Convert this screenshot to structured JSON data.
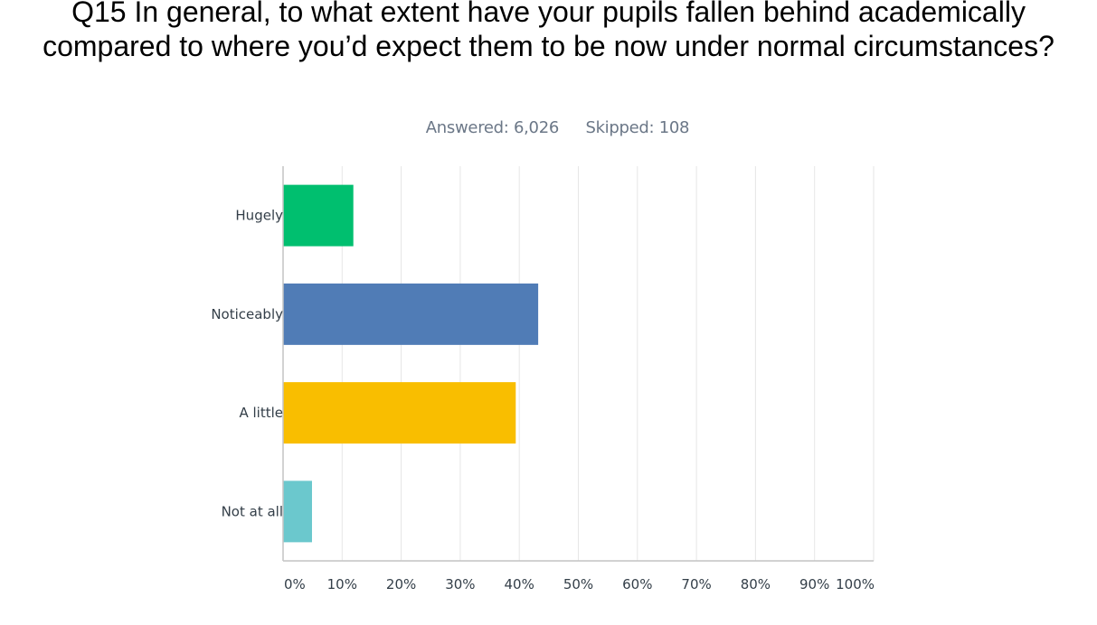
{
  "survey": {
    "question": "Q15 In general, to what extent have your pupils fallen behind academically compared to where you’d expect them to be now under normal circumstances?",
    "answered_label": "Answered: 6,026",
    "skipped_label": "Skipped: 108"
  },
  "chart_data": {
    "type": "bar",
    "orientation": "horizontal",
    "title": "Q15 In general, to what extent have your pupils fallen behind academically compared to where you’d expect them to be now under normal circumstances?",
    "categories": [
      "Hugely",
      "Noticeably",
      "A little",
      "Not at all"
    ],
    "values": [
      11.9,
      43.2,
      39.4,
      4.9
    ],
    "colors": [
      "#00bf6f",
      "#507cb6",
      "#f9be00",
      "#6bc8cd"
    ],
    "xlim": [
      0,
      100
    ],
    "x_ticks": [
      "0%",
      "10%",
      "20%",
      "30%",
      "40%",
      "50%",
      "60%",
      "70%",
      "80%",
      "90%",
      "100%"
    ],
    "grid": true,
    "legend": "none"
  }
}
